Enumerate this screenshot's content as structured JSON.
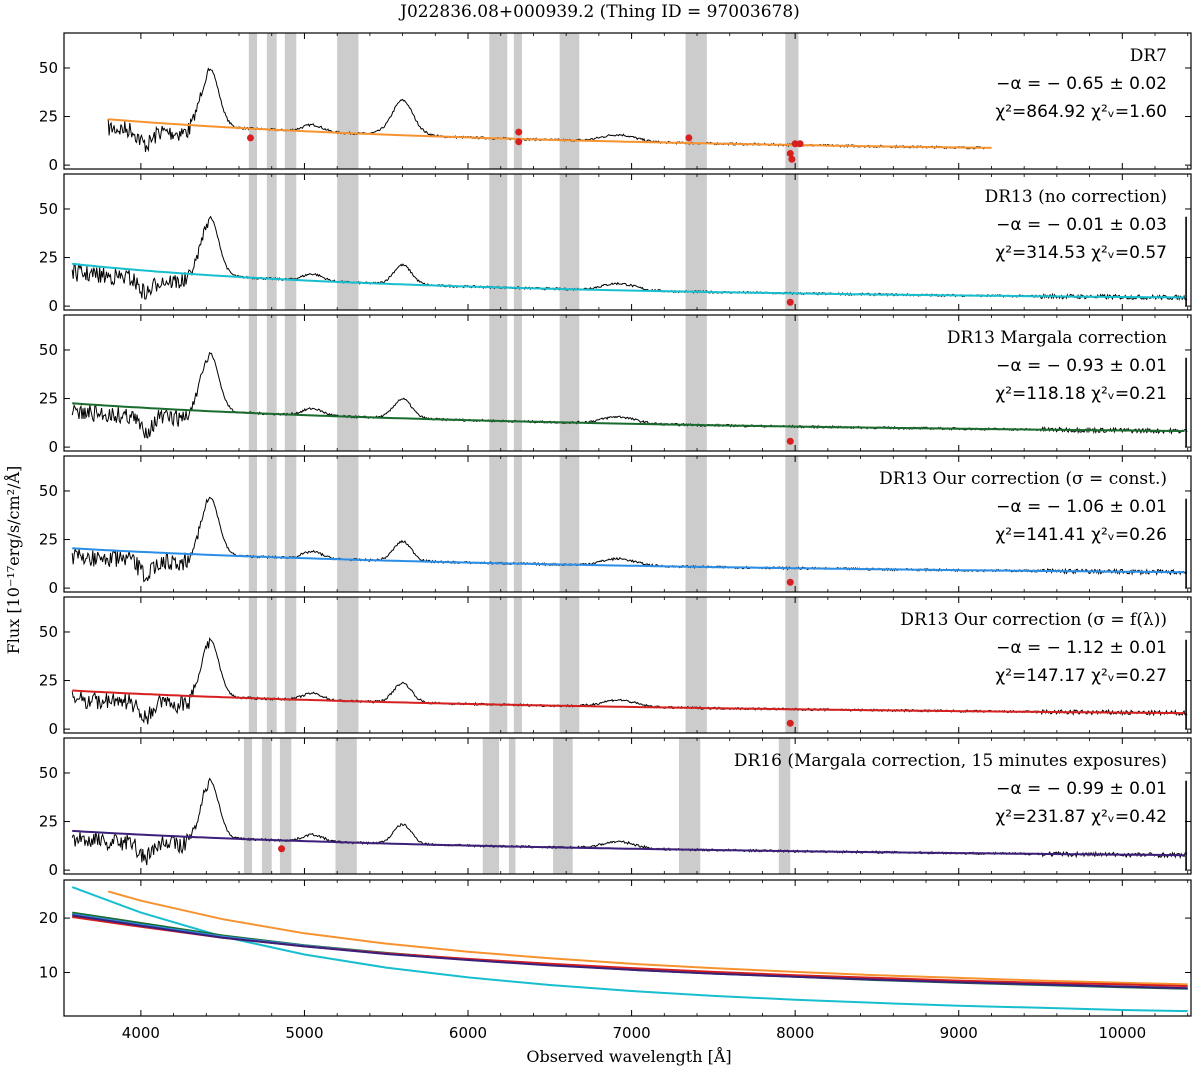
{
  "chart_data": {
    "type": "line",
    "title": "J022836.08+000939.2   (Thing ID = 97003678)",
    "xlabel": "Observed wavelength [Å]",
    "ylabel": "Flux [10⁻¹⁷erg/s/cm²/Å]",
    "xlim": [
      3530,
      10420
    ],
    "x_ticks": [
      4000,
      5000,
      6000,
      7000,
      8000,
      9000,
      10000
    ],
    "x_tick_labels": [
      "4000",
      "5000",
      "6000",
      "7000",
      "8000",
      "9000",
      "10000"
    ],
    "panels": [
      {
        "name": "DR7",
        "ylim": [
          -2,
          68
        ],
        "y_ticks": [
          0,
          25,
          50
        ],
        "y_tick_labels": [
          "0",
          "25",
          "50"
        ],
        "spectrum_range": [
          3800,
          9200
        ],
        "fit": {
          "color": "#f7932f",
          "alpha": 0.65,
          "norm": 12.0
        },
        "annotations": {
          "label": "DR7",
          "alpha": "−α = − 0.65 ± 0.02",
          "chi": "χ²=864.92  χ²ᵥ=1.60"
        },
        "masked_bands": [
          [
            4660,
            4710
          ],
          [
            4770,
            4830
          ],
          [
            4880,
            4950
          ],
          [
            5200,
            5330
          ],
          [
            6130,
            6240
          ],
          [
            6280,
            6330
          ],
          [
            6560,
            6680
          ],
          [
            7330,
            7460
          ],
          [
            7940,
            8020
          ]
        ],
        "red_points": [
          [
            4670,
            14
          ],
          [
            6310,
            17
          ],
          [
            6310,
            12
          ],
          [
            7350,
            14
          ],
          [
            7970,
            6
          ],
          [
            7980,
            3
          ],
          [
            8000,
            11
          ],
          [
            8030,
            11
          ]
        ]
      },
      {
        "name": "DR13 (no correction)",
        "ylim": [
          -2,
          68
        ],
        "y_ticks": [
          0,
          25,
          50
        ],
        "y_tick_labels": [
          "0",
          "25",
          "50"
        ],
        "spectrum_range": [
          3580,
          10400
        ],
        "fit": {
          "color": "#17becf",
          "alpha": 0.01,
          "norm": 8.0
        },
        "annotations": {
          "label": "DR13 (no correction)",
          "alpha": "−α = − 0.01 ± 0.03",
          "chi": "χ²=314.53  χ²ᵥ=0.57"
        },
        "masked_bands": [
          [
            4660,
            4710
          ],
          [
            4770,
            4830
          ],
          [
            4880,
            4950
          ],
          [
            5200,
            5330
          ],
          [
            6130,
            6240
          ],
          [
            6280,
            6330
          ],
          [
            6560,
            6680
          ],
          [
            7330,
            7460
          ],
          [
            7940,
            8020
          ]
        ],
        "red_points": [
          [
            7970,
            2
          ]
        ]
      },
      {
        "name": "DR13 Margala correction",
        "ylim": [
          -2,
          68
        ],
        "y_ticks": [
          0,
          25,
          50
        ],
        "y_tick_labels": [
          "0",
          "25",
          "50"
        ],
        "spectrum_range": [
          3580,
          10400
        ],
        "fit": {
          "color": "#1a6b2e",
          "alpha": 0.93,
          "norm": 12.0
        },
        "annotations": {
          "label": "DR13 Margala correction",
          "alpha": "−α = − 0.93 ± 0.01",
          "chi": "χ²=118.18  χ²ᵥ=0.21"
        },
        "masked_bands": [
          [
            4660,
            4710
          ],
          [
            4770,
            4830
          ],
          [
            4880,
            4950
          ],
          [
            5200,
            5330
          ],
          [
            6130,
            6240
          ],
          [
            6280,
            6330
          ],
          [
            6560,
            6680
          ],
          [
            7330,
            7460
          ],
          [
            7940,
            8020
          ]
        ],
        "red_points": [
          [
            7970,
            3
          ]
        ]
      },
      {
        "name": "DR13 Our correction (σ=const.)",
        "ylim": [
          -2,
          68
        ],
        "y_ticks": [
          0,
          25,
          50
        ],
        "y_tick_labels": [
          "0",
          "25",
          "50"
        ],
        "spectrum_range": [
          3580,
          10400
        ],
        "fit": {
          "color": "#2b8ee6",
          "alpha": 1.06,
          "norm": 11.5
        },
        "annotations": {
          "label": "DR13 Our correction (σ = const.)",
          "alpha": "−α = − 1.06 ± 0.01",
          "chi": "χ²=141.41  χ²ᵥ=0.26"
        },
        "masked_bands": [
          [
            4660,
            4710
          ],
          [
            4770,
            4830
          ],
          [
            4880,
            4950
          ],
          [
            5200,
            5330
          ],
          [
            6130,
            6240
          ],
          [
            6280,
            6330
          ],
          [
            6560,
            6680
          ],
          [
            7330,
            7460
          ],
          [
            7940,
            8020
          ]
        ],
        "red_points": [
          [
            7970,
            3
          ]
        ]
      },
      {
        "name": "DR13 Our correction (σ=f(λ))",
        "ylim": [
          -2,
          68
        ],
        "y_ticks": [
          0,
          25,
          50
        ],
        "y_tick_labels": [
          "0",
          "25",
          "50"
        ],
        "spectrum_range": [
          3580,
          10400
        ],
        "fit": {
          "color": "#d62020",
          "alpha": 1.12,
          "norm": 11.4
        },
        "annotations": {
          "label": "DR13 Our correction (σ = f(λ))",
          "alpha": "−α = − 1.12 ± 0.01",
          "chi": "χ²=147.17  χ²ᵥ=0.27"
        },
        "masked_bands": [
          [
            4660,
            4710
          ],
          [
            4770,
            4830
          ],
          [
            4880,
            4950
          ],
          [
            5200,
            5330
          ],
          [
            6130,
            6240
          ],
          [
            6280,
            6330
          ],
          [
            6560,
            6680
          ],
          [
            7330,
            7460
          ],
          [
            7940,
            8020
          ]
        ],
        "red_points": [
          [
            7970,
            3
          ]
        ]
      },
      {
        "name": "DR16 (Margala correction, 15 minutes exposures)",
        "ylim": [
          -2,
          68
        ],
        "y_ticks": [
          0,
          25,
          50
        ],
        "y_tick_labels": [
          "0",
          "25",
          "50"
        ],
        "spectrum_range": [
          3580,
          10400
        ],
        "fit": {
          "color": "#3b1f7a",
          "alpha": 0.99,
          "norm": 11.0
        },
        "annotations": {
          "label": "DR16 (Margala correction, 15 minutes exposures)",
          "alpha": "−α = − 0.99 ± 0.01",
          "chi": "χ²=231.87  χ²ᵥ=0.42"
        },
        "masked_bands": [
          [
            4630,
            4680
          ],
          [
            4740,
            4800
          ],
          [
            4850,
            4920
          ],
          [
            5190,
            5320
          ],
          [
            6090,
            6190
          ],
          [
            6250,
            6290
          ],
          [
            6520,
            6640
          ],
          [
            7290,
            7420
          ],
          [
            7900,
            7970
          ]
        ],
        "red_points": [
          [
            4860,
            11
          ]
        ]
      }
    ],
    "comparison_panel": {
      "ylim": [
        2,
        27
      ],
      "y_ticks": [
        10,
        20
      ],
      "y_tick_labels": [
        "10",
        "20"
      ],
      "series": [
        {
          "name": "DR7",
          "color": "#f7932f",
          "x": [
            3800,
            4000,
            4500,
            5000,
            5500,
            6000,
            6500,
            7000,
            7500,
            8000,
            8500,
            9000,
            9500,
            10000,
            10400
          ],
          "values": [
            24.9,
            23.2,
            19.8,
            17.2,
            15.3,
            13.8,
            12.6,
            11.6,
            10.8,
            10.1,
            9.5,
            9.0,
            8.5,
            8.1,
            7.8
          ]
        },
        {
          "name": "DR13 (no correction)",
          "color": "#17becf",
          "x": [
            3580,
            4000,
            4500,
            5000,
            5500,
            6000,
            6500,
            7000,
            7500,
            8000,
            8500,
            9000,
            9500,
            10000,
            10400
          ],
          "values": [
            25.7,
            21.0,
            16.6,
            13.3,
            10.9,
            9.1,
            7.7,
            6.6,
            5.7,
            5.0,
            4.4,
            3.9,
            3.5,
            3.1,
            2.9
          ]
        },
        {
          "name": "DR13 Margala correction",
          "color": "#1a6b2e",
          "x": [
            3580,
            4000,
            4500,
            5000,
            5500,
            6000,
            6500,
            7000,
            7500,
            8000,
            8500,
            9000,
            9500,
            10000,
            10400
          ],
          "values": [
            21.0,
            19.1,
            16.8,
            15.0,
            13.6,
            12.4,
            11.4,
            10.5,
            9.8,
            9.2,
            8.6,
            8.1,
            7.7,
            7.3,
            7.0
          ]
        },
        {
          "name": "DR13 Our correction (σ=const.)",
          "color": "#2b8ee6",
          "x": [
            3580,
            4000,
            4500,
            5000,
            5500,
            6000,
            6500,
            7000,
            7500,
            8000,
            8500,
            9000,
            9500,
            10000,
            10400
          ],
          "values": [
            20.7,
            18.8,
            16.6,
            14.9,
            13.5,
            12.4,
            11.4,
            10.6,
            9.9,
            9.3,
            8.7,
            8.2,
            7.8,
            7.4,
            7.1
          ]
        },
        {
          "name": "DR13 Our correction (σ=f(λ))",
          "color": "#d62020",
          "x": [
            3580,
            4000,
            4500,
            5000,
            5500,
            6000,
            6500,
            7000,
            7500,
            8000,
            8500,
            9000,
            9500,
            10000,
            10400
          ],
          "values": [
            20.2,
            18.4,
            16.4,
            14.8,
            13.5,
            12.5,
            11.6,
            10.8,
            10.1,
            9.5,
            9.0,
            8.5,
            8.1,
            7.8,
            7.5
          ]
        },
        {
          "name": "DR16 (Margala correction, 15 minutes exposures)",
          "color": "#3b1f7a",
          "x": [
            3580,
            4000,
            4500,
            5000,
            5500,
            6000,
            6500,
            7000,
            7500,
            8000,
            8500,
            9000,
            9500,
            10000,
            10400
          ],
          "values": [
            20.5,
            18.6,
            16.4,
            14.8,
            13.4,
            12.3,
            11.3,
            10.5,
            9.8,
            9.2,
            8.7,
            8.2,
            7.8,
            7.4,
            7.1
          ]
        }
      ]
    }
  }
}
